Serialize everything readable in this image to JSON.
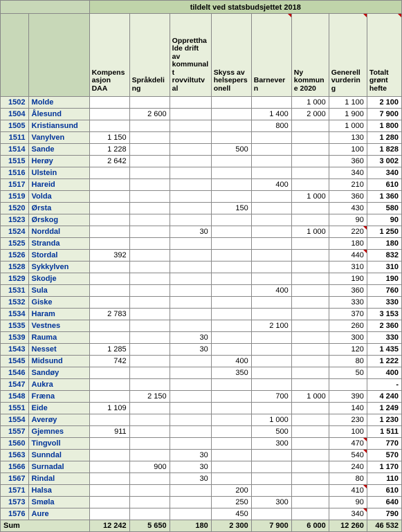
{
  "top_title": "tildelt ved statsbudsjettet 2018",
  "headers": [
    "Kompensasjon DAA",
    "Språkdeling",
    "Oppretthalde drift av kommunalt rovviltutval",
    "Skyss av helsepersonell",
    "Barnevern",
    "Ny kommune 2020",
    "Generell vurdering",
    "Totalt grønt hefte"
  ],
  "header_markers": [
    false,
    false,
    false,
    false,
    true,
    false,
    true,
    true
  ],
  "rows": [
    {
      "code": "1502",
      "name": "Molde",
      "v": [
        "",
        "",
        "",
        "",
        "",
        "1 000",
        "1 100",
        "2 100"
      ]
    },
    {
      "code": "1504",
      "name": "Ålesund",
      "v": [
        "",
        "2 600",
        "",
        "",
        "1 400",
        "2 000",
        "1 900",
        "7 900"
      ]
    },
    {
      "code": "1505",
      "name": "Kristiansund",
      "v": [
        "",
        "",
        "",
        "",
        "800",
        "",
        "1 000",
        "1 800"
      ]
    },
    {
      "code": "1511",
      "name": "Vanylven",
      "v": [
        "1 150",
        "",
        "",
        "",
        "",
        "",
        "130",
        "1 280"
      ]
    },
    {
      "code": "1514",
      "name": "Sande",
      "v": [
        "1 228",
        "",
        "",
        "500",
        "",
        "",
        "100",
        "1 828"
      ]
    },
    {
      "code": "1515",
      "name": "Herøy",
      "v": [
        "2 642",
        "",
        "",
        "",
        "",
        "",
        "360",
        "3 002"
      ]
    },
    {
      "code": "1516",
      "name": "Ulstein",
      "v": [
        "",
        "",
        "",
        "",
        "",
        "",
        "340",
        "340"
      ]
    },
    {
      "code": "1517",
      "name": "Hareid",
      "v": [
        "",
        "",
        "",
        "",
        "400",
        "",
        "210",
        "610"
      ]
    },
    {
      "code": "1519",
      "name": "Volda",
      "v": [
        "",
        "",
        "",
        "",
        "",
        "1 000",
        "360",
        "1 360"
      ]
    },
    {
      "code": "1520",
      "name": "Ørsta",
      "v": [
        "",
        "",
        "",
        "150",
        "",
        "",
        "430",
        "580"
      ]
    },
    {
      "code": "1523",
      "name": "Ørskog",
      "v": [
        "",
        "",
        "",
        "",
        "",
        "",
        "90",
        "90"
      ]
    },
    {
      "code": "1524",
      "name": "Norddal",
      "v": [
        "",
        "",
        "30",
        "",
        "",
        "1 000",
        "220",
        "1 250"
      ],
      "marks": [
        6
      ]
    },
    {
      "code": "1525",
      "name": "Stranda",
      "v": [
        "",
        "",
        "",
        "",
        "",
        "",
        "180",
        "180"
      ]
    },
    {
      "code": "1526",
      "name": "Stordal",
      "v": [
        "392",
        "",
        "",
        "",
        "",
        "",
        "440",
        "832"
      ],
      "marks": [
        6
      ]
    },
    {
      "code": "1528",
      "name": "Sykkylven",
      "v": [
        "",
        "",
        "",
        "",
        "",
        "",
        "310",
        "310"
      ]
    },
    {
      "code": "1529",
      "name": "Skodje",
      "v": [
        "",
        "",
        "",
        "",
        "",
        "",
        "190",
        "190"
      ]
    },
    {
      "code": "1531",
      "name": "Sula",
      "v": [
        "",
        "",
        "",
        "",
        "400",
        "",
        "360",
        "760"
      ]
    },
    {
      "code": "1532",
      "name": "Giske",
      "v": [
        "",
        "",
        "",
        "",
        "",
        "",
        "330",
        "330"
      ]
    },
    {
      "code": "1534",
      "name": "Haram",
      "v": [
        "2 783",
        "",
        "",
        "",
        "",
        "",
        "370",
        "3 153"
      ]
    },
    {
      "code": "1535",
      "name": "Vestnes",
      "v": [
        "",
        "",
        "",
        "",
        "2 100",
        "",
        "260",
        "2 360"
      ]
    },
    {
      "code": "1539",
      "name": "Rauma",
      "v": [
        "",
        "",
        "30",
        "",
        "",
        "",
        "300",
        "330"
      ]
    },
    {
      "code": "1543",
      "name": "Nesset",
      "v": [
        "1 285",
        "",
        "30",
        "",
        "",
        "",
        "120",
        "1 435"
      ]
    },
    {
      "code": "1545",
      "name": "Midsund",
      "v": [
        "742",
        "",
        "",
        "400",
        "",
        "",
        "80",
        "1 222"
      ]
    },
    {
      "code": "1546",
      "name": "Sandøy",
      "v": [
        "",
        "",
        "",
        "350",
        "",
        "",
        "50",
        "400"
      ]
    },
    {
      "code": "1547",
      "name": "Aukra",
      "v": [
        "",
        "",
        "",
        "",
        "",
        "",
        "",
        "-"
      ]
    },
    {
      "code": "1548",
      "name": "Fræna",
      "v": [
        "",
        "2 150",
        "",
        "",
        "700",
        "1 000",
        "390",
        "4 240"
      ]
    },
    {
      "code": "1551",
      "name": "Eide",
      "v": [
        "1 109",
        "",
        "",
        "",
        "",
        "",
        "140",
        "1 249"
      ]
    },
    {
      "code": "1554",
      "name": "Averøy",
      "v": [
        "",
        "",
        "",
        "",
        "1 000",
        "",
        "230",
        "1 230"
      ]
    },
    {
      "code": "1557",
      "name": "Gjemnes",
      "v": [
        "911",
        "",
        "",
        "",
        "500",
        "",
        "100",
        "1 511"
      ]
    },
    {
      "code": "1560",
      "name": "Tingvoll",
      "v": [
        "",
        "",
        "",
        "",
        "300",
        "",
        "470",
        "770"
      ],
      "marks": [
        6
      ]
    },
    {
      "code": "1563",
      "name": "Sunndal",
      "v": [
        "",
        "",
        "30",
        "",
        "",
        "",
        "540",
        "570"
      ],
      "marks": [
        6
      ]
    },
    {
      "code": "1566",
      "name": "Surnadal",
      "v": [
        "",
        "900",
        "30",
        "",
        "",
        "",
        "240",
        "1 170"
      ]
    },
    {
      "code": "1567",
      "name": "Rindal",
      "v": [
        "",
        "",
        "30",
        "",
        "",
        "",
        "80",
        "110"
      ]
    },
    {
      "code": "1571",
      "name": "Halsa",
      "v": [
        "",
        "",
        "",
        "200",
        "",
        "",
        "410",
        "610"
      ],
      "marks": [
        6
      ]
    },
    {
      "code": "1573",
      "name": "Smøla",
      "v": [
        "",
        "",
        "",
        "250",
        "300",
        "",
        "90",
        "640"
      ]
    },
    {
      "code": "1576",
      "name": "Aure",
      "v": [
        "",
        "",
        "",
        "450",
        "",
        "",
        "340",
        "790"
      ],
      "marks": [
        6
      ]
    }
  ],
  "sum": {
    "label": "Sum",
    "v": [
      "12 242",
      "5 650",
      "180",
      "2 300",
      "7 900",
      "6 000",
      "12 260",
      "46 532"
    ]
  }
}
